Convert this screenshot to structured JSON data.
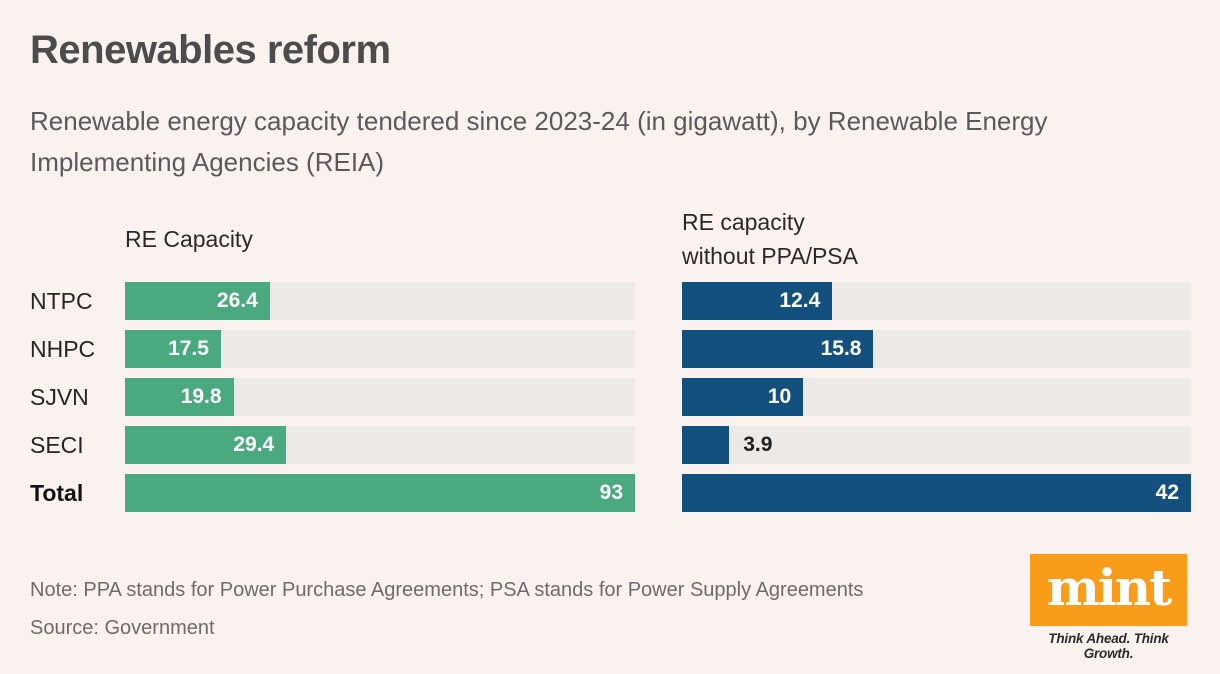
{
  "title": "Renewables reform",
  "subtitle": "Renewable energy capacity tendered since 2023-24 (in gigawatt), by Renewable Energy\nImplementing Agencies (REIA)",
  "note": "Note: PPA stands for Power Purchase Agreements; PSA stands for Power Supply Agreements",
  "source": "Source: Government",
  "branding": {
    "logo_text": "mint",
    "tagline": "Think Ahead. Think Growth.",
    "logo_bg": "#f89c1a",
    "logo_text_color": "#ffffff"
  },
  "colors": {
    "background": "#f9f2ef",
    "track": "#EDE9E6",
    "left_bar": "#4aa97e",
    "right_bar": "#14507e",
    "value_inside": "#ffffff",
    "value_outside": "#1f1f1f"
  },
  "chart_data": {
    "type": "bar",
    "orientation": "horizontal",
    "unit": "gigawatt",
    "categories": [
      "NTPC",
      "NHPC",
      "SJVN",
      "SECI",
      "Total"
    ],
    "series": [
      {
        "name": "RE Capacity",
        "header": "RE Capacity",
        "values": [
          26.4,
          17.5,
          19.8,
          29.4,
          93
        ],
        "max": 93,
        "color": "#4aa97e"
      },
      {
        "name": "RE capacity without PPA/PSA",
        "header": "RE capacity\nwithout PPA/PSA",
        "values": [
          12.4,
          15.8,
          10,
          3.9,
          42
        ],
        "max": 42,
        "color": "#14507e"
      }
    ],
    "legend_position": "column-headers",
    "grid": false,
    "total_row": "Total"
  }
}
